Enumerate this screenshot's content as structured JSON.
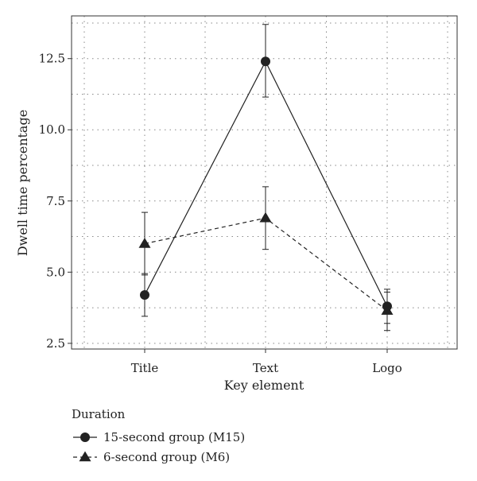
{
  "chart_data": {
    "type": "line",
    "xlabel": "Key element",
    "ylabel": "Dwell time percentage",
    "categories": [
      "Title",
      "Text",
      "Logo"
    ],
    "ylim": [
      2.3,
      14.0
    ],
    "yticks": [
      2.5,
      5.0,
      7.5,
      10.0,
      12.5
    ],
    "ytick_labels": [
      "2.5",
      "5.0",
      "7.5",
      "10.0",
      "12.5"
    ],
    "grid": true,
    "legend": {
      "title": "Duration",
      "placement": "bottom-left"
    },
    "series": [
      {
        "name": "15-second group (M15)",
        "marker": "circle",
        "line_style": "solid",
        "color": "#222222",
        "values": [
          4.2,
          12.4,
          3.8
        ],
        "err_low": [
          3.45,
          11.15,
          3.2
        ],
        "err_high": [
          4.95,
          13.7,
          4.4
        ]
      },
      {
        "name": "6-second group (M6)",
        "marker": "triangle",
        "line_style": "dashed",
        "color": "#222222",
        "values": [
          6.0,
          6.9,
          3.65
        ],
        "err_low": [
          4.9,
          5.8,
          2.95
        ],
        "err_high": [
          7.1,
          8.0,
          4.3
        ]
      }
    ]
  }
}
